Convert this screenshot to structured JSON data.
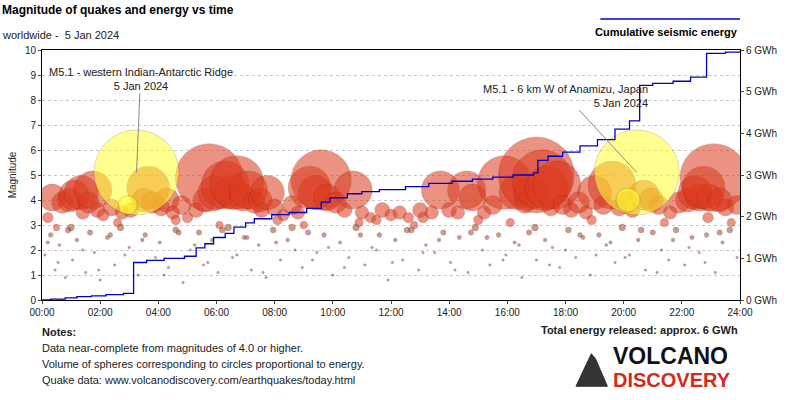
{
  "chart_data": {
    "type": "scatter",
    "title": "Magnitude of quakes and energy vs time",
    "subtitle": "worldwide -  5 Jan 2024",
    "y_label": "Magnitude",
    "xlim": [
      0,
      24
    ],
    "xticks": [
      {
        "value": 0,
        "label": "00:00"
      },
      {
        "value": 2,
        "label": "02:00"
      },
      {
        "value": 4,
        "label": "04:00"
      },
      {
        "value": 6,
        "label": "06:00"
      },
      {
        "value": 8,
        "label": "08:00"
      },
      {
        "value": 10,
        "label": "10:00"
      },
      {
        "value": 12,
        "label": "12:00"
      },
      {
        "value": 14,
        "label": "14:00"
      },
      {
        "value": 16,
        "label": "16:00"
      },
      {
        "value": 18,
        "label": "18:00"
      },
      {
        "value": 20,
        "label": "20:00"
      },
      {
        "value": 22,
        "label": "22:00"
      },
      {
        "value": 24,
        "label": "24:00"
      }
    ],
    "ylim": [
      0,
      10
    ],
    "yticks": [
      0,
      1,
      2,
      3,
      4,
      5,
      6,
      7,
      8,
      9,
      10
    ],
    "y2lim": [
      0,
      6
    ],
    "y2ticks": [
      {
        "value": 0,
        "label": "0 GWh"
      },
      {
        "value": 1,
        "label": "1 GWh"
      },
      {
        "value": 2,
        "label": "2 GWh"
      },
      {
        "value": 3,
        "label": "3 GWh"
      },
      {
        "value": 4,
        "label": "4 GWh"
      },
      {
        "value": 5,
        "label": "5 GWh"
      },
      {
        "value": 6,
        "label": "6 GWh"
      }
    ],
    "grid": true,
    "series": [
      {
        "type": "scatter",
        "marker": "circle",
        "color": "#9a4a32",
        "x": [
          0.1,
          0.3,
          0.45,
          0.6,
          0.8,
          0.9,
          1.05,
          1.2,
          1.5,
          1.65,
          1.8,
          2.0,
          2.25,
          2.5,
          2.7,
          3.0,
          3.3,
          3.55,
          3.9,
          4.05,
          4.35,
          4.6,
          4.85,
          5.1,
          5.4,
          5.7,
          5.85,
          6.05,
          6.4,
          6.7,
          6.95,
          7.2,
          7.45,
          7.7,
          7.95,
          8.2,
          8.45,
          8.7,
          8.95,
          9.15,
          9.45,
          9.7,
          10.0,
          10.25,
          10.55,
          10.8,
          11.1,
          11.35,
          11.6,
          11.9,
          12.15,
          12.4,
          12.7,
          12.95,
          13.2,
          13.5,
          13.8,
          14.05,
          14.35,
          14.65,
          14.9,
          15.15,
          15.4,
          15.7,
          15.95,
          16.25,
          16.5,
          16.75,
          17.0,
          17.3,
          17.55,
          17.8,
          18.1,
          18.35,
          18.6,
          18.85,
          19.15,
          19.4,
          19.7,
          19.95,
          20.2,
          20.5,
          20.75,
          21.0,
          21.3,
          21.55,
          21.8,
          22.1,
          22.35,
          22.6,
          22.85,
          23.15,
          23.4,
          23.65,
          23.9,
          0.2,
          0.55,
          1.0,
          1.4,
          1.95,
          2.35,
          2.85,
          3.45,
          4.2,
          4.7,
          5.25,
          5.55,
          6.2,
          6.55,
          7.05,
          7.6,
          8.05,
          8.6,
          9.3,
          9.85,
          10.4,
          10.95,
          11.5,
          12.05,
          12.55,
          13.1,
          13.65,
          14.2,
          14.75,
          15.3,
          15.85,
          16.4,
          16.95,
          17.45,
          18.0,
          18.5,
          19.05,
          19.55,
          20.05,
          20.6,
          21.15,
          21.7,
          22.25,
          22.8,
          23.3
        ],
        "values": [
          1.8,
          2.6,
          1.2,
          2.2,
          0.9,
          2.8,
          1.6,
          2.4,
          1.1,
          2.7,
          1.9,
          0.8,
          2.5,
          1.4,
          2.9,
          2.1,
          1.0,
          2.6,
          1.7,
          2.3,
          1.3,
          2.8,
          0.7,
          2.0,
          2.7,
          1.5,
          2.4,
          1.1,
          2.9,
          1.8,
          2.5,
          1.2,
          2.2,
          0.9,
          2.8,
          1.6,
          2.4,
          2.0,
          1.3,
          2.7,
          1.9,
          2.6,
          1.0,
          2.3,
          1.7,
          2.9,
          1.4,
          2.1,
          2.6,
          0.8,
          2.4,
          1.6,
          2.8,
          1.2,
          2.2,
          1.9,
          2.7,
          1.5,
          2.5,
          1.1,
          2.9,
          2.0,
          1.4,
          2.6,
          1.8,
          2.3,
          0.9,
          2.7,
          1.6,
          2.4,
          2.1,
          1.3,
          2.8,
          1.7,
          2.5,
          1.0,
          2.6,
          2.2,
          1.5,
          2.9,
          1.8,
          2.4,
          1.2,
          2.7,
          2.0,
          1.6,
          2.8,
          1.4,
          2.5,
          1.9,
          2.6,
          1.1,
          2.3,
          2.8,
          1.7,
          2.3,
          1.5,
          2.9,
          2.0,
          1.2,
          2.6,
          1.8,
          2.4,
          1.0,
          2.7,
          2.2,
          1.4,
          2.8,
          1.7,
          2.5,
          1.1,
          2.3,
          2.9,
          1.6,
          2.1,
          1.3,
          2.6,
          2.0,
          1.5,
          2.8,
          1.9,
          2.4,
          1.2,
          2.7,
          2.5,
          1.6,
          2.2,
          2.9,
          1.4,
          2.0,
          2.6,
          1.8,
          2.3,
          1.7,
          2.8,
          1.1,
          2.4,
          2.1,
          1.5,
          2.7
        ]
      },
      {
        "type": "scatter",
        "marker": "circle",
        "color": "#dc3a1e",
        "x": [
          0.35,
          0.7,
          0.95,
          1.1,
          1.35,
          1.6,
          1.75,
          1.9,
          2.1,
          2.4,
          2.75,
          3.05,
          3.5,
          3.65,
          3.8,
          4.1,
          4.3,
          4.5,
          4.8,
          5.0,
          5.3,
          5.6,
          5.75,
          5.95,
          6.3,
          6.55,
          6.7,
          6.9,
          7.1,
          7.3,
          7.5,
          7.55,
          7.75,
          8.0,
          8.3,
          8.6,
          8.8,
          9.2,
          9.4,
          9.6,
          9.8,
          10.1,
          10.4,
          10.7,
          11.0,
          11.3,
          11.7,
          12.0,
          12.3,
          12.6,
          13.0,
          13.4,
          13.7,
          14.0,
          14.3,
          14.6,
          14.8,
          15.2,
          15.5,
          15.9,
          16.3,
          16.6,
          16.8,
          17.0,
          17.2,
          17.35,
          17.5,
          17.7,
          17.9,
          18.2,
          18.45,
          18.7,
          19.0,
          19.3,
          19.6,
          19.85,
          20.1,
          20.3,
          20.7,
          20.95,
          21.2,
          21.6,
          21.9,
          22.2,
          22.45,
          22.6,
          22.75,
          22.95,
          23.1,
          23.3,
          23.5,
          23.9,
          2.6,
          4.6,
          6.1,
          8.1,
          9.0,
          10.9,
          12.8,
          13.1,
          15.0,
          16.1,
          18.9,
          21.4,
          22.9,
          23.7,
          1.4,
          0.2,
          0.5,
          11.5
        ],
        "values": [
          4.1,
          3.9,
          4.0,
          4.2,
          4.3,
          3.9,
          4.4,
          3.6,
          3.4,
          3.7,
          3.5,
          3.6,
          4.0,
          4.5,
          3.9,
          3.7,
          4.0,
          3.5,
          3.8,
          3.3,
          3.6,
          4.0,
          4.9,
          4.3,
          4.6,
          4.3,
          4.7,
          4.1,
          4.4,
          3.9,
          4.0,
          3.6,
          4.3,
          3.7,
          3.4,
          3.8,
          3.5,
          4.5,
          4.3,
          4.8,
          4.1,
          3.9,
          3.6,
          4.4,
          3.5,
          3.3,
          3.6,
          3.4,
          3.5,
          3.3,
          3.6,
          3.5,
          4.4,
          3.6,
          3.5,
          4.4,
          4.1,
          3.5,
          3.8,
          4.7,
          4.3,
          3.9,
          4.3,
          5.0,
          4.8,
          4.5,
          3.7,
          4.6,
          3.8,
          3.6,
          3.9,
          3.5,
          4.3,
          3.8,
          4.6,
          3.7,
          3.9,
          3.6,
          4.2,
          4.0,
          3.8,
          3.5,
          3.9,
          4.0,
          4.3,
          4.1,
          4.5,
          4.1,
          4.9,
          4.0,
          3.7,
          3.8,
          3.1,
          3.2,
          3.0,
          3.2,
          3.0,
          3.1,
          3.0,
          3.3,
          3.2,
          3.1,
          3.2,
          3.1,
          3.3,
          3.1,
          3.5,
          3.3,
          2.9,
          3.2
        ]
      },
      {
        "type": "scatter",
        "marker": "circle",
        "color": "#ffff33",
        "x": [
          3.25,
          2.95,
          20.45,
          20.15
        ],
        "values": [
          5.1,
          3.8,
          5.1,
          4.0
        ]
      },
      {
        "name": "Cumulative seismic energy",
        "type": "line",
        "line_style": "step",
        "color": "#0000cc",
        "axis": "y2",
        "x": [
          0.0,
          0.3,
          0.8,
          1.2,
          1.7,
          2.2,
          2.8,
          3.15,
          3.6,
          4.2,
          4.9,
          5.3,
          5.6,
          5.9,
          6.3,
          6.6,
          7.0,
          7.3,
          7.9,
          8.5,
          9.1,
          9.6,
          9.9,
          10.5,
          11.0,
          11.6,
          12.5,
          13.3,
          14.1,
          14.8,
          15.5,
          16.2,
          16.9,
          17.05,
          17.4,
          17.9,
          18.5,
          19.1,
          19.7,
          20.2,
          20.55,
          21.0,
          21.7,
          22.3,
          22.85,
          23.5,
          24.0
        ],
        "values": [
          0,
          0.02,
          0.05,
          0.08,
          0.1,
          0.13,
          0.16,
          0.9,
          0.95,
          1.0,
          1.05,
          1.25,
          1.35,
          1.5,
          1.6,
          1.75,
          1.85,
          1.95,
          2.05,
          2.1,
          2.2,
          2.35,
          2.45,
          2.55,
          2.6,
          2.65,
          2.72,
          2.8,
          2.85,
          2.9,
          2.95,
          3.0,
          3.05,
          3.35,
          3.45,
          3.55,
          3.7,
          3.85,
          4.1,
          4.3,
          5.15,
          5.2,
          5.25,
          5.35,
          5.92,
          5.95,
          5.97
        ]
      }
    ],
    "annotations": [
      {
        "text": [
          "M5.1 - western Indian-Antarctic Ridge",
          "5 Jan 2024"
        ],
        "x": 3.25,
        "y": 5.1
      },
      {
        "text": [
          "M5.1 - 6 km W of Anamizu, Japan",
          "5 Jan 2024"
        ],
        "x": 20.45,
        "y": 5.1
      }
    ],
    "notes_title": "Notes:",
    "notes": [
      "Data near-complete from magnitudes of 4.0 or higher.",
      "Volume of spheres corresponding to circles proportional to energy.",
      "Quake data: www.volcanodiscovery.com/earthquakes/today.html"
    ],
    "total": "Total energy released: approx. 6 GWh",
    "logo": [
      "VOLCANO",
      "DISCOVERY"
    ]
  }
}
